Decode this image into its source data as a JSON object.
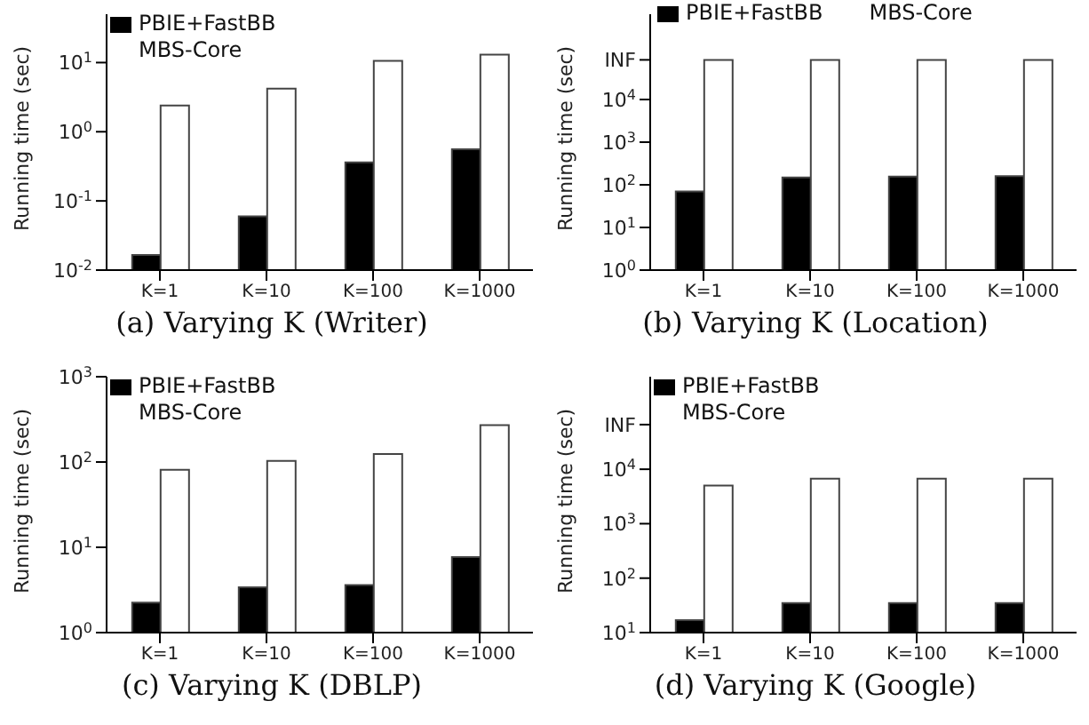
{
  "chart_data": [
    {
      "type": "bar",
      "title": "(a) Varying K (Writer)",
      "ylabel": "Running time (sec)",
      "categories": [
        "K=1",
        "K=10",
        "K=100",
        "K=1000"
      ],
      "log": "y",
      "ylim": [
        0.01,
        50
      ],
      "yticks": [
        {
          "value": 0.01,
          "label": "10$^{-2}$"
        },
        {
          "value": 0.1,
          "label": "10$^{-1}$"
        },
        {
          "value": 1,
          "label": "10$^{0}$"
        },
        {
          "value": 10,
          "label": "10$^{1}$"
        }
      ],
      "legend": "top left",
      "series": [
        {
          "name": "PBIE+FastBB",
          "color": "#000000",
          "values": [
            0.0165,
            0.06,
            0.36,
            0.56
          ]
        },
        {
          "name": "MBS-Core",
          "color": "#ffffff",
          "values": [
            2.4,
            4.2,
            10.6,
            13
          ]
        }
      ]
    },
    {
      "type": "bar",
      "title": "(b) Varying K (Location)",
      "ylabel": "Running time (sec)",
      "categories": [
        "K=1",
        "K=10",
        "K=100",
        "K=1000"
      ],
      "log": "y",
      "ylim": [
        1,
        1000000
      ],
      "yticks": [
        {
          "value": 1,
          "label": "10$^{0}$"
        },
        {
          "value": 10,
          "label": "10$^{1}$"
        },
        {
          "value": 100,
          "label": "10$^{2}$"
        },
        {
          "value": 1000,
          "label": "10$^{3}$"
        },
        {
          "value": 10000,
          "label": "10$^{4}$"
        },
        {
          "value": 85000,
          "label": "INF"
        }
      ],
      "legend": "top",
      "series": [
        {
          "name": "PBIE+FastBB",
          "color": "#000000",
          "values": [
            70,
            148,
            155,
            160
          ]
        },
        {
          "name": "MBS-Core",
          "color": "#ffffff",
          "values": [
            85000,
            85000,
            85000,
            85000
          ]
        }
      ]
    },
    {
      "type": "bar",
      "title": "(c) Varying K (DBLP)",
      "ylabel": "Running time (sec)",
      "categories": [
        "K=1",
        "K=10",
        "K=100",
        "K=1000"
      ],
      "log": "y",
      "ylim": [
        1,
        1000
      ],
      "yticks": [
        {
          "value": 1,
          "label": "10$^{0}$"
        },
        {
          "value": 10,
          "label": "10$^{1}$"
        },
        {
          "value": 100,
          "label": "10$^{2}$"
        },
        {
          "value": 1000,
          "label": "10$^{3}$"
        }
      ],
      "legend": "top left",
      "series": [
        {
          "name": "PBIE+FastBB",
          "color": "#000000",
          "values": [
            2.25,
            3.4,
            3.6,
            7.7
          ]
        },
        {
          "name": "MBS-Core",
          "color": "#ffffff",
          "values": [
            81,
            103,
            124,
            270
          ]
        }
      ]
    },
    {
      "type": "bar",
      "title": "(d) Varying K (Google)",
      "ylabel": "Running time (sec)",
      "categories": [
        "K=1",
        "K=10",
        "K=100",
        "K=1000"
      ],
      "log": "y",
      "ylim": [
        10,
        500000
      ],
      "yticks": [
        {
          "value": 10,
          "label": "10$^{1}$"
        },
        {
          "value": 100,
          "label": "10$^{2}$"
        },
        {
          "value": 1000,
          "label": "10$^{3}$"
        },
        {
          "value": 10000,
          "label": "10$^{4}$"
        },
        {
          "value": 66000,
          "label": "INF"
        }
      ],
      "legend": "top left",
      "series": [
        {
          "name": "PBIE+FastBB",
          "color": "#000000",
          "values": [
            17,
            35,
            35,
            35
          ]
        },
        {
          "name": "MBS-Core",
          "color": "#ffffff",
          "values": [
            5000,
            6700,
            6700,
            6700
          ]
        }
      ]
    }
  ]
}
